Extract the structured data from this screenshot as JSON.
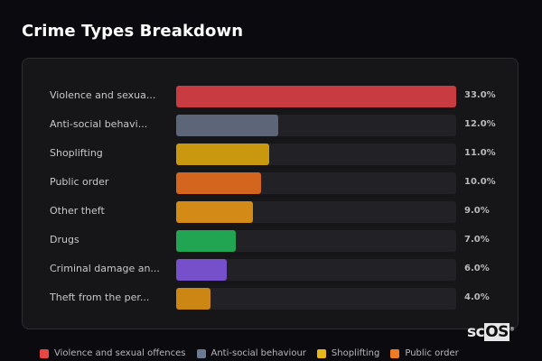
{
  "header": {
    "title": "Crime Types Breakdown"
  },
  "chart_data": {
    "type": "bar",
    "orientation": "horizontal",
    "title": "Crime Types Breakdown",
    "categories": [
      "Violence and sexual offences",
      "Anti-social behaviour",
      "Shoplifting",
      "Public order",
      "Other theft",
      "Drugs",
      "Criminal damage and arson",
      "Theft from the person"
    ],
    "display_labels": [
      "Violence and sexua...",
      "Anti-social behavi...",
      "Shoplifting",
      "Public order",
      "Other theft",
      "Drugs",
      "Criminal damage an...",
      "Theft from the per..."
    ],
    "values": [
      33.0,
      12.0,
      11.0,
      10.0,
      9.0,
      7.0,
      6.0,
      4.0
    ],
    "value_labels": [
      "33.0%",
      "12.0%",
      "11.0%",
      "10.0%",
      "9.0%",
      "7.0%",
      "6.0%",
      "4.0%"
    ],
    "colors": [
      "#c83c41",
      "#5c6678",
      "#c9980f",
      "#d4651e",
      "#d48a17",
      "#22a553",
      "#7650cb",
      "#cc8614"
    ],
    "xlim": [
      0,
      33
    ],
    "legend": [
      "Violence and sexual offences",
      "Anti-social behaviour",
      "Shoplifting",
      "Public order"
    ],
    "legend_colors": [
      "#e84545",
      "#6b7a90",
      "#e8b81a",
      "#f07a22"
    ],
    "legend_position": "bottom"
  },
  "watermark": {
    "text_a": "sc",
    "text_b": "OS",
    "mark": "®"
  }
}
